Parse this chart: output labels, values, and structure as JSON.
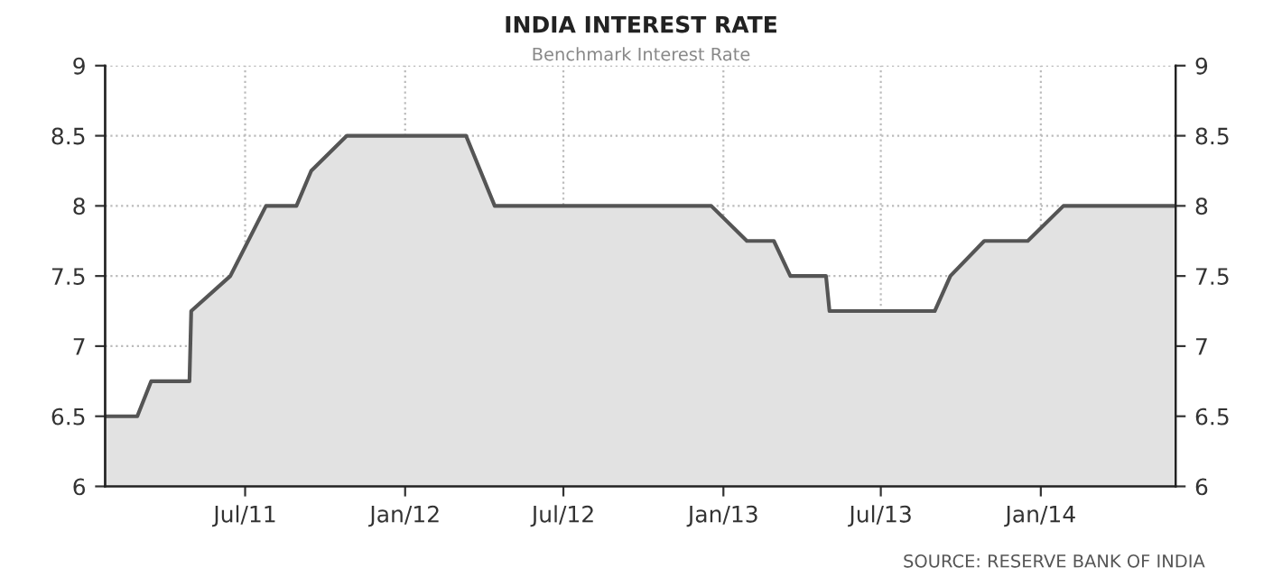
{
  "chart_data": {
    "type": "area",
    "title": "INDIA INTEREST RATE",
    "subtitle": "Benchmark Interest Rate",
    "annotations": [
      "SOURCE: RESERVE BANK OF INDIA"
    ],
    "x": [
      "2011-01-21",
      "2011-02-27",
      "2011-03-15",
      "2011-04-28",
      "2011-04-30",
      "2011-06-14",
      "2011-07-25",
      "2011-08-29",
      "2011-09-15",
      "2011-10-26",
      "2012-03-11",
      "2012-04-13",
      "2012-12-18",
      "2013-01-28",
      "2013-02-28",
      "2013-03-19",
      "2013-04-29",
      "2013-05-03",
      "2013-09-01",
      "2013-09-19",
      "2013-10-28",
      "2013-12-17",
      "2014-01-27",
      "2014-06-05"
    ],
    "series": [
      {
        "color": "#555555",
        "values": [
          6.5,
          6.5,
          6.75,
          6.75,
          7.25,
          7.5,
          8.0,
          8.0,
          8.25,
          8.5,
          8.5,
          8.0,
          8.0,
          7.75,
          7.75,
          7.5,
          7.5,
          7.25,
          7.25,
          7.5,
          7.75,
          7.75,
          8.0,
          8.0
        ]
      }
    ],
    "xlim": [
      "2011-01-21",
      "2014-06-05"
    ],
    "xticks": [
      {
        "value": "2011-07-01",
        "label": "Jul/11"
      },
      {
        "value": "2012-01-01",
        "label": "Jan/12"
      },
      {
        "value": "2012-07-01",
        "label": "Jul/12"
      },
      {
        "value": "2013-01-01",
        "label": "Jan/13"
      },
      {
        "value": "2013-07-01",
        "label": "Jul/13"
      },
      {
        "value": "2014-01-01",
        "label": "Jan/14"
      }
    ],
    "ylim": [
      6,
      9
    ],
    "yticks": [
      6,
      6.5,
      7,
      7.5,
      8,
      8.5,
      9
    ],
    "y2lim": [
      6,
      9
    ],
    "y2ticks": [
      6,
      6.5,
      7,
      7.5,
      8,
      8.5,
      9
    ],
    "grid": true,
    "legend": false,
    "marker": "none",
    "line_style": "solid"
  }
}
